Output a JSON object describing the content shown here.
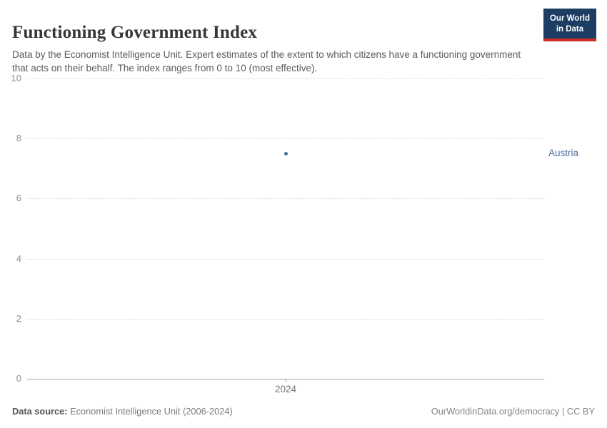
{
  "header": {
    "title": "Functioning Government Index",
    "subtitle": "Data by the Economist Intelligence Unit. Expert estimates of the extent to which citizens have a functioning government that acts on their behalf. The index ranges from 0 to 10 (most effective).",
    "logo": {
      "line1": "Our World",
      "line2": "in Data",
      "bg_color": "#1d3d63",
      "accent_color": "#cf2d27"
    }
  },
  "chart_data": {
    "type": "scatter",
    "title": "Functioning Government Index",
    "series": [
      {
        "name": "Austria",
        "x": [
          2024
        ],
        "y": [
          7.5
        ],
        "color": "#4c6a9c"
      }
    ],
    "x_ticks": [
      "2024"
    ],
    "y_ticks": [
      0,
      2,
      4,
      6,
      8,
      10
    ],
    "ylim": [
      0,
      10
    ],
    "xlabel": "",
    "ylabel": "",
    "grid": "horizontal-dashed",
    "legend_position": "right-entity-label"
  },
  "footer": {
    "source_label": "Data source:",
    "source_value": " Economist Intelligence Unit (2006-2024)",
    "credit": "OurWorldinData.org/democracy | CC BY"
  }
}
